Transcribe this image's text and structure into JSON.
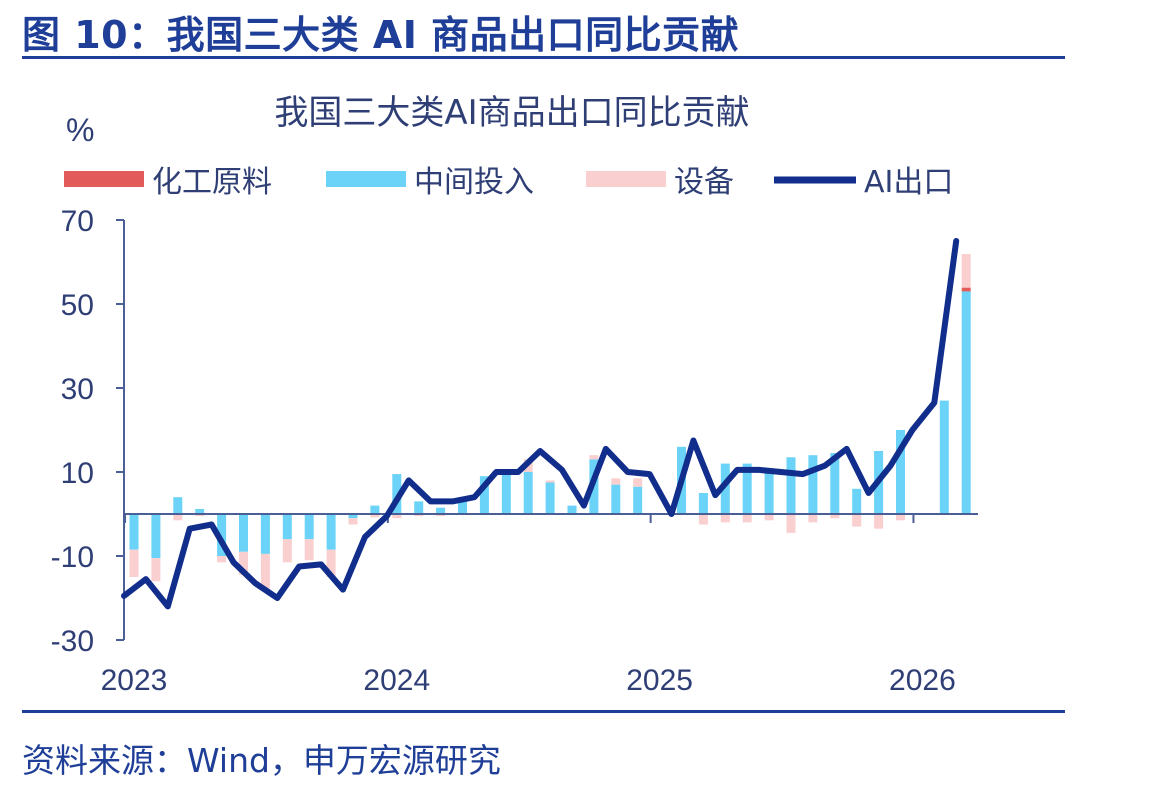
{
  "figure_title": "图 10：我国三大类 AI 商品出口同比贡献",
  "source": "资料来源：Wind，申万宏源研究",
  "colors": {
    "frame": "#1f3e97",
    "chemical": "#e25a5a",
    "intermediate": "#6ad3f7",
    "equipment": "#f9cfcf",
    "ai_line": "#122e8c",
    "axis": "#4a5f96",
    "text": "#2f3f76"
  },
  "chart_data": {
    "type": "bar",
    "title": "我国三大类AI商品出口同比贡献",
    "ylabel": "%",
    "ylim": [
      -30,
      70
    ],
    "yticks": [
      "70",
      "50",
      "30",
      "10",
      "-10",
      "-30"
    ],
    "ytick_values": [
      70,
      50,
      30,
      10,
      -10,
      -30
    ],
    "xtick_labels": [
      "2023",
      "2024",
      "2025",
      "2026"
    ],
    "xtick_indices": [
      0,
      12,
      24,
      36
    ],
    "grid": false,
    "legend_position": "top",
    "legend": [
      "化工原料",
      "中间投入",
      "设备",
      "AI出口"
    ],
    "months": 39,
    "series": [
      {
        "name": "化工原料",
        "kind": "stacked-bar",
        "values": [
          0,
          0,
          0,
          0,
          0,
          0,
          0,
          0,
          0,
          0,
          0,
          0,
          0,
          0,
          0,
          0,
          0,
          0,
          0,
          0,
          0,
          0,
          0,
          0,
          0,
          0,
          0,
          0,
          0,
          0,
          0,
          0,
          0,
          0,
          0,
          0,
          0,
          0,
          0.9
        ]
      },
      {
        "name": "中间投入",
        "kind": "stacked-bar",
        "values": [
          -8.5,
          -10.5,
          4,
          1.2,
          -10,
          -9,
          -9.5,
          -6,
          -6,
          -8.5,
          -1,
          2,
          9.5,
          3,
          1.5,
          4,
          9,
          9.5,
          10,
          7.5,
          2,
          13,
          7,
          6.5,
          0,
          16,
          5,
          12,
          12,
          10.5,
          13.5,
          14,
          14.5,
          6,
          15,
          20,
          0,
          27,
          53
        ]
      },
      {
        "name": "设备",
        "kind": "stacked-bar",
        "values": [
          -6.5,
          -5.5,
          -1.5,
          -0.5,
          -1.5,
          -5.5,
          -8.5,
          -5.5,
          -5,
          -6.5,
          -1.5,
          -0.8,
          -1,
          -0.5,
          -0.5,
          0,
          0,
          0,
          3,
          0.5,
          0,
          1,
          1.5,
          2,
          0,
          0,
          -2.5,
          -2,
          -2,
          -1.5,
          -4.5,
          -2,
          -1,
          -3,
          -3.5,
          -1.5,
          0,
          0,
          8
        ]
      },
      {
        "name": "AI出口",
        "kind": "line",
        "values": [
          -19.5,
          -15.5,
          -22,
          -3.5,
          -2.5,
          -11.5,
          -16.5,
          -20,
          -12.5,
          -12,
          -18,
          -5.5,
          -0.5,
          8,
          3,
          3,
          4,
          10,
          10,
          15,
          10.5,
          2,
          15.5,
          10,
          9.5,
          0,
          17.5,
          4.5,
          10.5,
          10.5,
          10,
          9.5,
          11.5,
          15.5,
          5,
          11.5,
          20,
          26.5,
          65
        ]
      }
    ]
  }
}
